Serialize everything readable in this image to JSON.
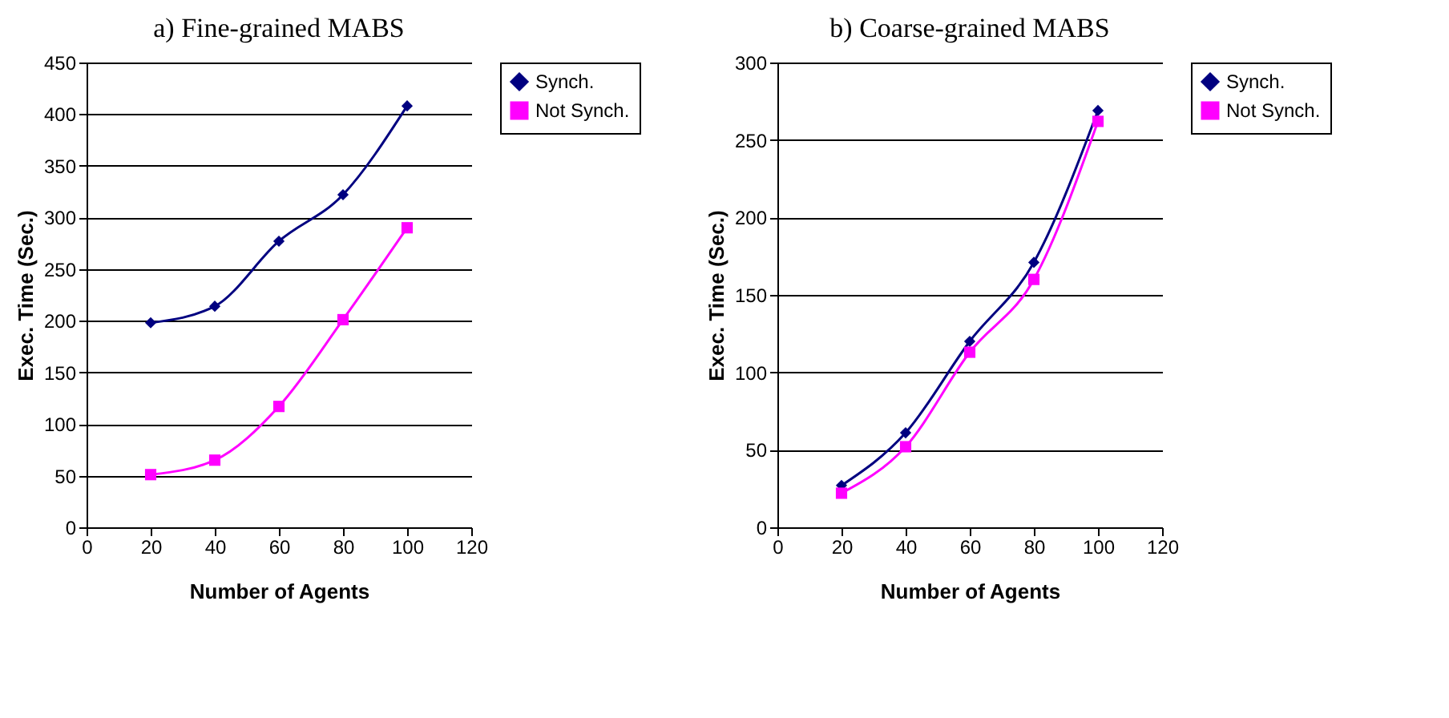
{
  "chart_data": [
    {
      "type": "line",
      "title": "a) Fine-grained MABS",
      "xlabel": "Number of Agents",
      "ylabel": "Exec. Time (Sec.)",
      "x": [
        20,
        40,
        60,
        80,
        100
      ],
      "xlim": [
        0,
        120
      ],
      "xticks": [
        0,
        20,
        40,
        60,
        80,
        100,
        120
      ],
      "ylim": [
        0,
        450
      ],
      "yticks": [
        0,
        50,
        100,
        150,
        200,
        250,
        300,
        350,
        400,
        450
      ],
      "grid": "y",
      "legend": "right",
      "series": [
        {
          "name": "Synch.",
          "color": "#000080",
          "marker": "diamond",
          "values": [
            198,
            214,
            277,
            322,
            408
          ]
        },
        {
          "name": "Not Synch.",
          "color": "#ff00ff",
          "marker": "square",
          "values": [
            51,
            65,
            117,
            201,
            290
          ]
        }
      ]
    },
    {
      "type": "line",
      "title": "b) Coarse-grained MABS",
      "xlabel": "Number of Agents",
      "ylabel": "Exec. Time (Sec.)",
      "x": [
        20,
        40,
        60,
        80,
        100
      ],
      "xlim": [
        0,
        120
      ],
      "xticks": [
        0,
        20,
        40,
        60,
        80,
        100,
        120
      ],
      "ylim": [
        0,
        300
      ],
      "yticks": [
        0,
        50,
        100,
        150,
        200,
        250,
        300
      ],
      "grid": "y",
      "legend": "right",
      "series": [
        {
          "name": "Synch.",
          "color": "#000080",
          "marker": "diamond",
          "values": [
            27,
            61,
            120,
            171,
            269
          ]
        },
        {
          "name": "Not Synch.",
          "color": "#ff00ff",
          "marker": "square",
          "values": [
            22,
            52,
            113,
            160,
            262
          ]
        }
      ]
    }
  ]
}
